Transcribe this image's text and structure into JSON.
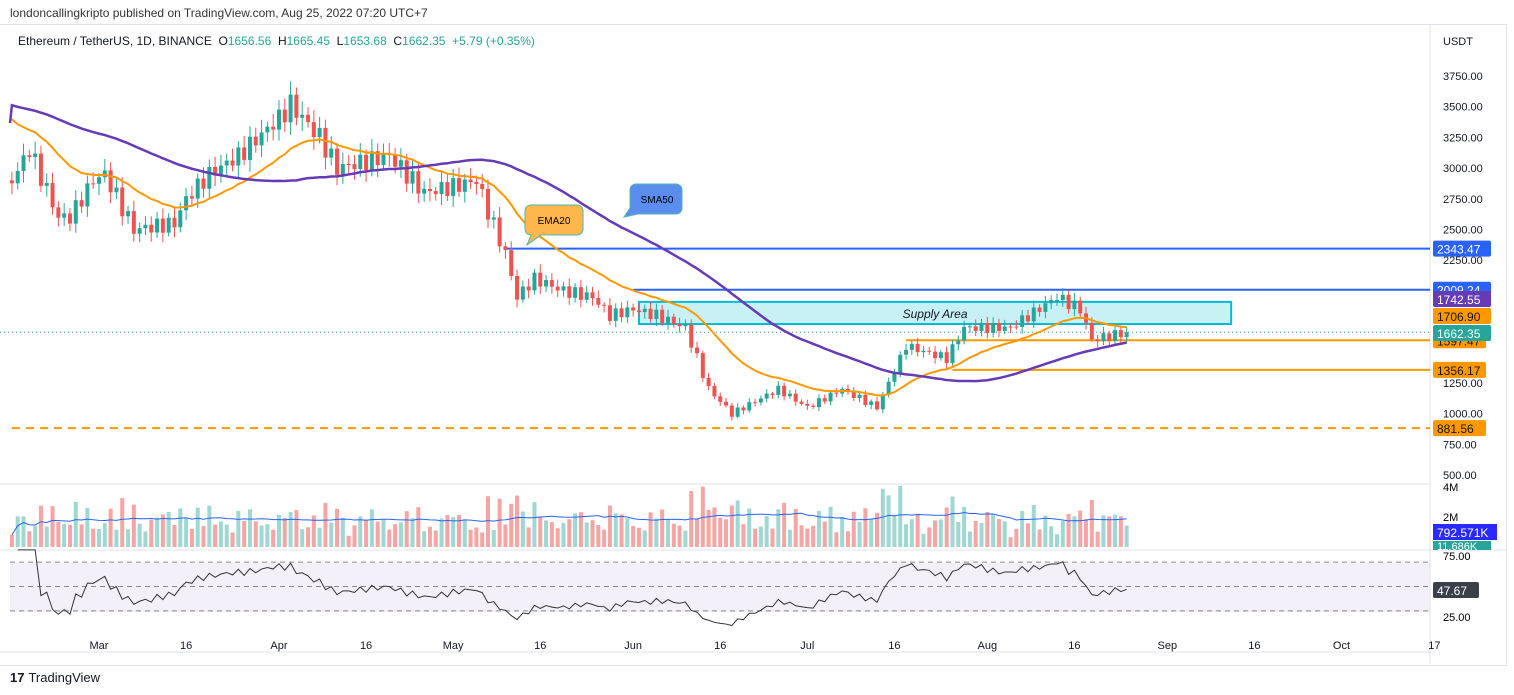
{
  "header": {
    "published": "londoncallingkripto published on TradingView.com, Aug 25, 2022 07:20 UTC+7",
    "symbol": "Ethereum / TetherUS, 1D, BINANCE",
    "o_label": "O",
    "o": "1656.56",
    "h_label": "H",
    "h": "1665.45",
    "l_label": "L",
    "l": "1653.68",
    "c_label": "C",
    "c": "1662.35",
    "change": "+5.79 (+0.35%)"
  },
  "footer": {
    "brand": "TradingView"
  },
  "colors": {
    "up": "#26a69a",
    "down": "#ef5350",
    "ema": "#ff9800",
    "sma": "#673ab7",
    "blue": "#2962ff",
    "supply": "#00bcd4"
  },
  "chart_data": {
    "type": "candlestick",
    "currency": "USDT",
    "y_ticks": [
      "3750.00",
      "3500.00",
      "3250.00",
      "3000.00",
      "2750.00",
      "2500.00",
      "2250.00",
      "1250.00",
      "1000.00",
      "750.00",
      "500.00"
    ],
    "ylim": [
      500,
      3750
    ],
    "x_ticks": [
      {
        "label": "Mar",
        "date": "2022-03-01"
      },
      {
        "label": "16",
        "date": "2022-03-16"
      },
      {
        "label": "Apr",
        "date": "2022-04-01"
      },
      {
        "label": "16",
        "date": "2022-04-16"
      },
      {
        "label": "May",
        "date": "2022-05-01"
      },
      {
        "label": "16",
        "date": "2022-05-16"
      },
      {
        "label": "Jun",
        "date": "2022-06-01"
      },
      {
        "label": "16",
        "date": "2022-06-16"
      },
      {
        "label": "Jul",
        "date": "2022-07-01"
      },
      {
        "label": "16",
        "date": "2022-07-16"
      },
      {
        "label": "Aug",
        "date": "2022-08-01"
      },
      {
        "label": "16",
        "date": "2022-08-16"
      },
      {
        "label": "Sep",
        "date": "2022-09-01"
      },
      {
        "label": "16",
        "date": "2022-09-16"
      },
      {
        "label": "Oct",
        "date": "2022-10-01"
      },
      {
        "label": "17",
        "date": "2022-10-17"
      }
    ],
    "close_anchors": [
      [
        "2022-02-14",
        2900
      ],
      [
        "2022-02-17",
        3150
      ],
      [
        "2022-02-22",
        2600
      ],
      [
        "2022-02-24",
        2600
      ],
      [
        "2022-02-28",
        2900
      ],
      [
        "2022-03-02",
        2950
      ],
      [
        "2022-03-07",
        2500
      ],
      [
        "2022-03-14",
        2550
      ],
      [
        "2022-03-16",
        2750
      ],
      [
        "2022-03-20",
        2950
      ],
      [
        "2022-03-25",
        3100
      ],
      [
        "2022-04-02",
        3450
      ],
      [
        "2022-04-03",
        3520
      ],
      [
        "2022-04-08",
        3250
      ],
      [
        "2022-04-11",
        3000
      ],
      [
        "2022-04-20",
        3100
      ],
      [
        "2022-04-26",
        2800
      ],
      [
        "2022-05-01",
        2850
      ],
      [
        "2022-05-05",
        2900
      ],
      [
        "2022-05-07",
        2650
      ],
      [
        "2022-05-10",
        2300
      ],
      [
        "2022-05-12",
        1950
      ],
      [
        "2022-05-15",
        2100
      ],
      [
        "2022-05-20",
        2000
      ],
      [
        "2022-05-25",
        1950
      ],
      [
        "2022-05-28",
        1800
      ],
      [
        "2022-06-01",
        1850
      ],
      [
        "2022-06-05",
        1800
      ],
      [
        "2022-06-10",
        1700
      ],
      [
        "2022-06-12",
        1450
      ],
      [
        "2022-06-14",
        1200
      ],
      [
        "2022-06-18",
        1000
      ],
      [
        "2022-06-22",
        1100
      ],
      [
        "2022-06-26",
        1200
      ],
      [
        "2022-07-01",
        1050
      ],
      [
        "2022-07-07",
        1200
      ],
      [
        "2022-07-13",
        1050
      ],
      [
        "2022-07-15",
        1250
      ],
      [
        "2022-07-18",
        1550
      ],
      [
        "2022-07-25",
        1450
      ],
      [
        "2022-07-28",
        1700
      ],
      [
        "2022-08-05",
        1700
      ],
      [
        "2022-08-13",
        1950
      ],
      [
        "2022-08-17",
        1850
      ],
      [
        "2022-08-19",
        1600
      ],
      [
        "2022-08-25",
        1662.35
      ]
    ],
    "levels": [
      {
        "price": 2343.47,
        "label": "2343.47",
        "color": "#2962ff",
        "from": "2022-05-10",
        "style": "solid"
      },
      {
        "price": 2009.24,
        "label": "2009.24",
        "color": "#2962ff",
        "from": "2022-06-01",
        "style": "solid"
      },
      {
        "price": 1597.47,
        "label": "1597.47",
        "color": "#ff9800",
        "from": "2022-07-18",
        "style": "solid"
      },
      {
        "price": 1356.17,
        "label": "1356.17",
        "color": "#ff9800",
        "from": "2022-07-26",
        "style": "solid"
      },
      {
        "price": 881.56,
        "label": "881.56",
        "color": "#ff9800",
        "from": "2022-02-14",
        "style": "dashed"
      }
    ],
    "ma_labels": {
      "sma": "1742.55",
      "ema": "1706.90",
      "last": "1662.35"
    },
    "supply_zone": {
      "label": "Supply Area",
      "top": 1910,
      "bottom": 1730,
      "from": "2022-06-02",
      "to": "2022-09-12"
    },
    "callouts": {
      "ema": "EMA20",
      "sma": "SMA50"
    },
    "volume": {
      "ticks": [
        "4M",
        "2M"
      ],
      "ma_label": "792.571K",
      "last_label": "11.686K"
    },
    "rsi": {
      "ticks": [
        "75.00",
        "25.00"
      ],
      "last_label": "47.67",
      "upper": 70,
      "lower": 30
    }
  }
}
